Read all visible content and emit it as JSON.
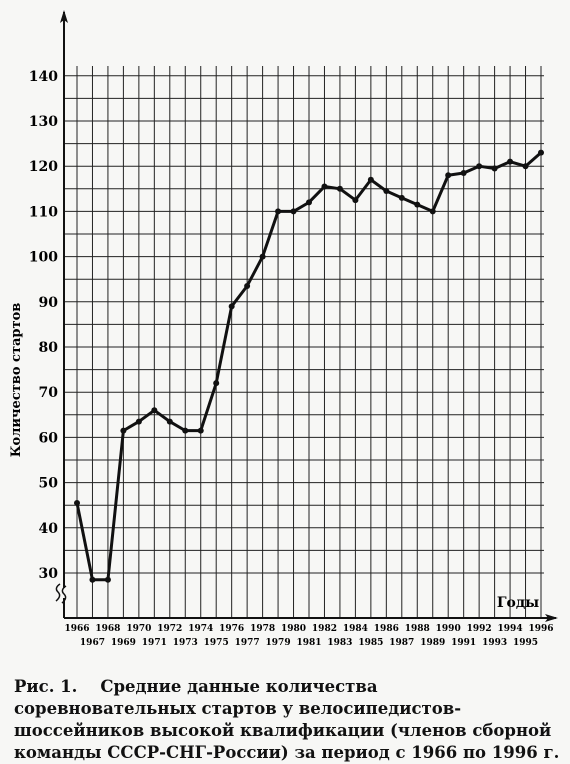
{
  "chart_data": {
    "type": "line",
    "ylabel": "Количество стартов",
    "xlabel": "Годы",
    "y_ticks": [
      30,
      40,
      50,
      60,
      70,
      80,
      90,
      100,
      110,
      120,
      130,
      140
    ],
    "ylim": [
      25,
      140
    ],
    "y_axis_break": true,
    "grid": true,
    "x_ticks_top": [
      "1966",
      "1968",
      "1970",
      "1972",
      "1974",
      "1976",
      "1978",
      "1980",
      "1982",
      "1984",
      "1986",
      "1988",
      "1990",
      "1992",
      "1994",
      "1996"
    ],
    "x_ticks_bottom": [
      "1967",
      "1969",
      "1971",
      "1973",
      "1975",
      "1977",
      "1979",
      "1981",
      "1983",
      "1985",
      "1987",
      "1989",
      "1991",
      "1993",
      "1995"
    ],
    "series": [
      {
        "x": [
          1966,
          1967,
          1968,
          1969,
          1970,
          1971,
          1972,
          1973,
          1974,
          1975,
          1976,
          1977,
          1978,
          1979,
          1980,
          1981,
          1982,
          1983,
          1984,
          1985,
          1986,
          1987,
          1988,
          1989,
          1990,
          1991,
          1992,
          1993,
          1994,
          1995,
          1996
        ],
        "values": [
          45.5,
          28.5,
          28.5,
          61.5,
          63.5,
          66,
          63.5,
          61.5,
          61.5,
          72,
          89,
          93.5,
          100,
          110,
          110,
          112,
          115.5,
          115,
          112.5,
          117,
          114.5,
          113,
          111.5,
          110,
          118,
          118.5,
          120,
          119.5,
          121,
          120,
          123
        ]
      }
    ]
  },
  "caption": {
    "label": "Рис. 1.",
    "text": "Средние данные количества соревновательных стартов у велосипедистов-шоссейников высокой квалификации (членов сборной команды СССР-СНГ-России) за период с 1966 по 1996 г."
  }
}
